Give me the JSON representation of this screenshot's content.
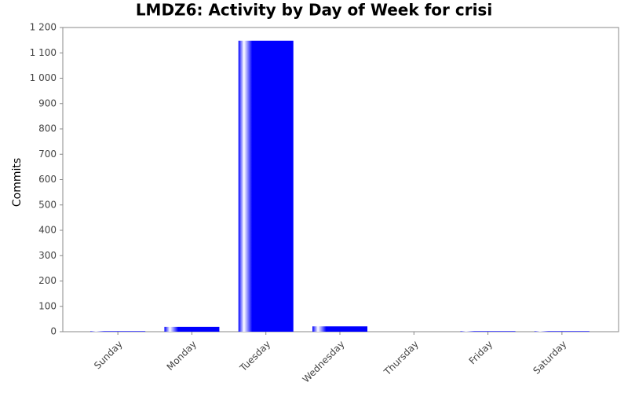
{
  "chart_data": {
    "type": "bar",
    "title": "LMDZ6: Activity by Day of Week for crisi",
    "y_label": "Commits",
    "categories": [
      "Sunday",
      "Monday",
      "Tuesday",
      "Wednesday",
      "Thursday",
      "Friday",
      "Saturday"
    ],
    "values": [
      2,
      19,
      1148,
      21,
      0,
      2,
      2
    ],
    "color": "#0000ff",
    "ylim": [
      0,
      1200
    ],
    "yticks": [
      0,
      100,
      200,
      300,
      400,
      500,
      600,
      700,
      800,
      900,
      {
        "value": 1000,
        "label": "1 000"
      },
      {
        "value": 1100,
        "label": "1 100"
      },
      {
        "value": 1200,
        "label": "1 200"
      }
    ]
  }
}
